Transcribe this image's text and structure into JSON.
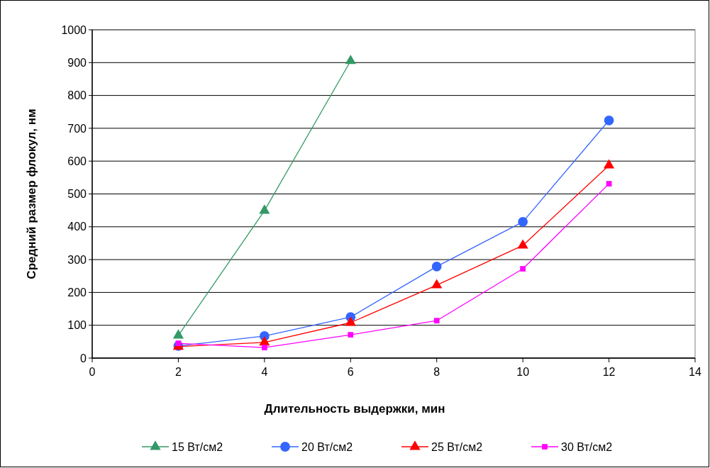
{
  "chart_data": {
    "type": "line",
    "xlabel": "Длительность выдержки, мин",
    "ylabel": "Средний размер флокул, нм",
    "x": [
      2,
      4,
      6,
      8,
      10,
      12
    ],
    "xlim": [
      0,
      14
    ],
    "xticks": [
      0,
      2,
      4,
      6,
      8,
      10,
      12,
      14
    ],
    "ylim": [
      0,
      1000
    ],
    "yticks": [
      0,
      100,
      200,
      300,
      400,
      500,
      600,
      700,
      800,
      900,
      1000
    ],
    "grid": "y",
    "legend": "bottom",
    "series": [
      {
        "name": "15 Вт/см2",
        "color": "#339966",
        "marker": "triangle",
        "x": [
          2,
          4,
          6
        ],
        "values": [
          69,
          449,
          905
        ]
      },
      {
        "name": "20 Вт/см2",
        "color": "#3366ff",
        "marker": "circle",
        "values": [
          37,
          67,
          125,
          279,
          415,
          724
        ]
      },
      {
        "name": "25 Вт/см2",
        "color": "#ff0000",
        "marker": "triangle",
        "values": [
          35,
          48,
          108,
          222,
          343,
          587
        ]
      },
      {
        "name": "30 Вт/см2",
        "color": "#ff00ff",
        "marker": "square",
        "values": [
          45,
          32,
          71,
          114,
          272,
          531
        ]
      }
    ]
  }
}
